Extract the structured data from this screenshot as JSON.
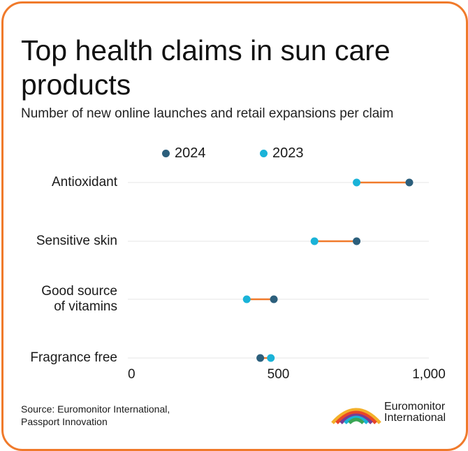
{
  "title": "Top health claims in sun care products",
  "subtitle": "Number of new online launches and retail expansions per claim",
  "legend": [
    {
      "label": "2024",
      "color": "#2c5f7c"
    },
    {
      "label": "2023",
      "color": "#1ab3d8"
    }
  ],
  "colors": {
    "connector": "#f07a2b",
    "frame": "#f07a2b",
    "grid": "#e6e6e6"
  },
  "chart_data": {
    "type": "dumbbell",
    "title": "Top health claims in sun care products",
    "subtitle": "Number of new online launches and retail expansions per claim",
    "xlabel": "",
    "ylabel": "",
    "xlim": [
      0,
      1000
    ],
    "x_ticks": [
      "0",
      "500",
      "1,000"
    ],
    "x_tick_values": [
      0,
      500,
      1000
    ],
    "categories": [
      "Antioxidant",
      "Sensitive skin",
      "Good source\nof vitamins",
      "Fragrance free"
    ],
    "series": [
      {
        "name": "2024",
        "values": [
          935,
          760,
          485,
          440
        ]
      },
      {
        "name": "2023",
        "values": [
          760,
          620,
          395,
          475
        ]
      }
    ],
    "grid": true,
    "legend_position": "top"
  },
  "source": "Source: Euromonitor International,\nPassport Innovation",
  "logo_text": "Euromonitor\nInternational"
}
